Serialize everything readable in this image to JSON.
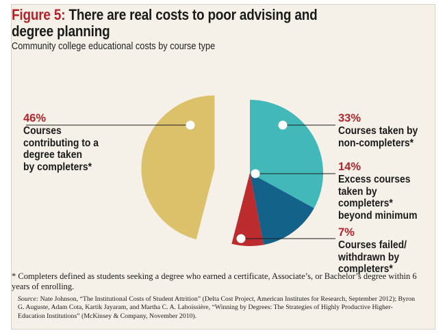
{
  "header": {
    "figure_label": "Figure 5:",
    "title": "There are real costs to poor advising and degree planning",
    "subtitle": "Community college educational costs by course type"
  },
  "chart_data": {
    "type": "pie",
    "title": "There are real costs to poor advising and degree planning",
    "subtitle": "Community college educational costs by course type",
    "unit": "%",
    "slices": [
      {
        "label": "Courses taken by non-completers*",
        "value": 33,
        "display": "33%",
        "color": "#42b9b8",
        "exploded": false
      },
      {
        "label": "Excess courses taken by completers* beyond minimum",
        "value": 14,
        "display": "14%",
        "color": "#14628a",
        "exploded": false
      },
      {
        "label": "Courses failed/ withdrawn by completers*",
        "value": 7,
        "display": "7%",
        "color": "#bc2b2d",
        "exploded": false
      },
      {
        "label": "Courses contributing to a degree taken by completers*",
        "value": 46,
        "display": "46%",
        "color": "#dcc16b",
        "exploded": true
      }
    ],
    "label_lines": {
      "noncompleters": "Courses taken by\nnon-completers*",
      "excess": "Excess courses\ntaken by\ncompleters*\nbeyond minimum",
      "failed": "Courses failed/\nwithdrawn by\ncompleters*",
      "degree": "Courses\ncontributing to a\ndegree taken\nby completers*"
    }
  },
  "footnote": "* Completers defined as students seeking a degree who earned a certificate, Associate’s, or Bachelor’s degree within 6 years of enrolling.",
  "source": {
    "label": "Source:",
    "text": "Nate Johnson, “The Institutional Costs of Student Attrition” (Delta Cost Project, American Institutes for Research, September 2012); Byron G. Auguste, Adam Cota, Kartik Jayaram, and Martha C. A. Laboissière, “Winning by Degrees: The Strategies of Highly Productive Higher-Education Institutions” (McKinsey & Company, November 2010)."
  }
}
